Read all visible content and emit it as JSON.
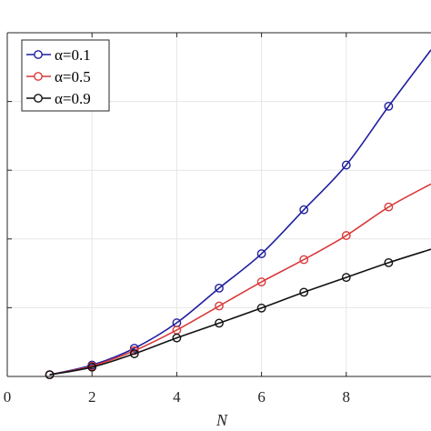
{
  "chart_data": {
    "type": "line",
    "title": "",
    "xlabel": "N",
    "ylabel": "",
    "xlim": [
      0,
      10
    ],
    "xticks": [
      0,
      2,
      4,
      6,
      8
    ],
    "xtick_labels": [
      "0",
      "2",
      "4",
      "6",
      "8"
    ],
    "grid": true,
    "legend_position": "top-left",
    "markers": "open circles",
    "series": [
      {
        "name": "α=0.1",
        "color": "#1f1f9e",
        "x": [
          1,
          2,
          3,
          4,
          5,
          6,
          7,
          8,
          9,
          10
        ],
        "y": [
          0.5,
          3.3,
          8.2,
          15.6,
          25.7,
          35.7,
          48.5,
          61.5,
          78.6,
          95.0
        ]
      },
      {
        "name": "α=0.5",
        "color": "#d93a3a",
        "x": [
          1,
          2,
          3,
          4,
          5,
          6,
          7,
          8,
          9,
          10
        ],
        "y": [
          0.5,
          3.0,
          7.5,
          13.5,
          20.5,
          27.5,
          34.0,
          41.0,
          49.3,
          56.0
        ]
      },
      {
        "name": "α=0.9",
        "color": "#111111",
        "x": [
          1,
          2,
          3,
          4,
          5,
          6,
          7,
          8,
          9,
          10
        ],
        "y": [
          0.5,
          2.7,
          6.6,
          11.2,
          15.5,
          19.9,
          24.5,
          28.8,
          33.1,
          37.0
        ]
      }
    ]
  }
}
